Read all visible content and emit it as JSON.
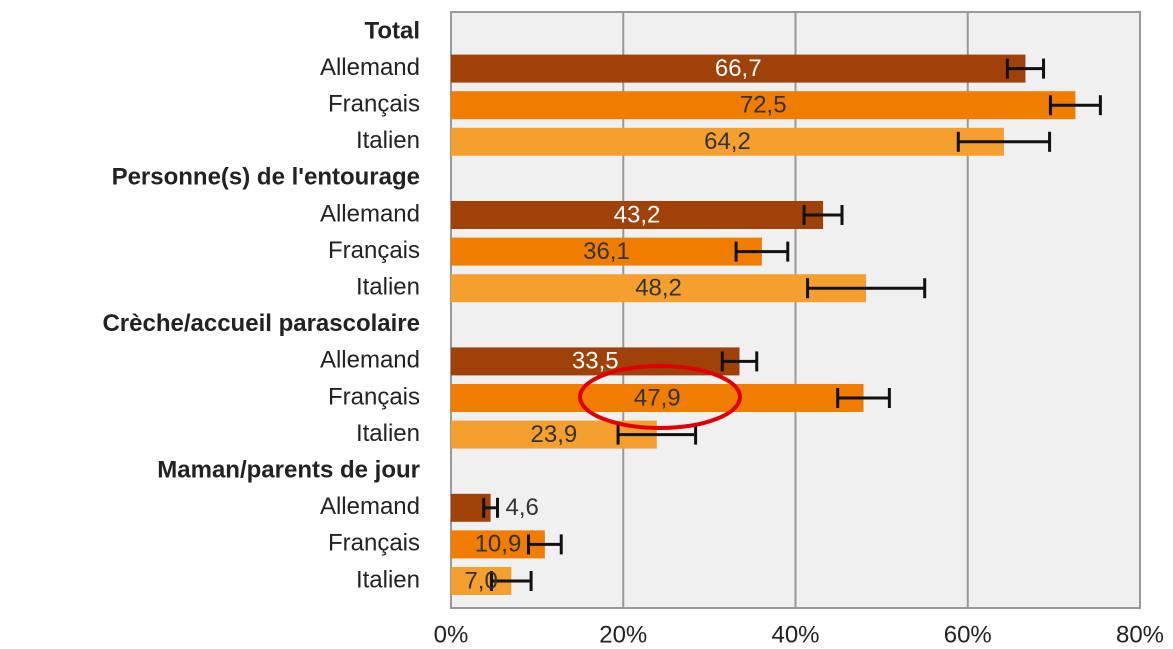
{
  "chart_data": {
    "type": "bar",
    "orientation": "horizontal",
    "categories": [
      "Total",
      "Personne(s) de l'entourage",
      "Crèche/accueil parascolaire",
      "Maman/parents de jour"
    ],
    "series": [
      {
        "name": "Allemand",
        "color": "#a0410a",
        "values": [
          66.7,
          43.2,
          33.5,
          4.6
        ],
        "value_labels": [
          "66,7",
          "43,2",
          "33,5",
          "4,6"
        ],
        "errors": [
          2.1,
          2.2,
          2.0,
          0.8
        ]
      },
      {
        "name": "Français",
        "color": "#f07d00",
        "values": [
          72.5,
          36.1,
          47.9,
          10.9
        ],
        "value_labels": [
          "72,5",
          "36,1",
          "47,9",
          "10,9"
        ],
        "errors": [
          2.9,
          3.0,
          3.0,
          1.9
        ]
      },
      {
        "name": "Italien",
        "color": "#f5a02e",
        "values": [
          64.2,
          48.2,
          23.9,
          7.0
        ],
        "value_labels": [
          "64,2",
          "48,2",
          "23,9",
          "7,0"
        ],
        "errors": [
          5.3,
          6.8,
          4.5,
          2.3
        ]
      }
    ],
    "xlim": [
      0,
      80
    ],
    "xticks": [
      {
        "value": 0,
        "label": "0%"
      },
      {
        "value": 20,
        "label": "20%"
      },
      {
        "value": 40,
        "label": "40%"
      },
      {
        "value": 60,
        "label": "60%"
      },
      {
        "value": 80,
        "label": "80%"
      }
    ],
    "grid": true
  }
}
